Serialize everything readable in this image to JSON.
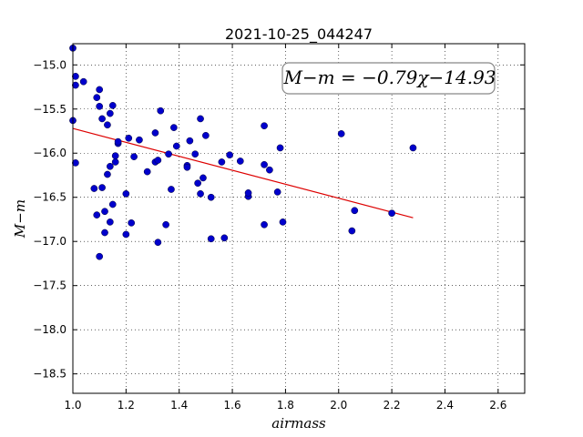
{
  "chart_data": {
    "type": "scatter",
    "title": "2021-10-25_044247",
    "xlabel": "airmass",
    "ylabel": "M−m",
    "xlim": [
      1.0,
      2.7
    ],
    "ylim": [
      -18.72,
      -14.76
    ],
    "y_inverted": true,
    "grid": true,
    "xticks": [
      1.0,
      1.2,
      1.4,
      1.6,
      1.8,
      2.0,
      2.2,
      2.4,
      2.6
    ],
    "xtick_labels": [
      "1.0",
      "1.2",
      "1.4",
      "1.6",
      "1.8",
      "2.0",
      "2.2",
      "2.4",
      "2.6"
    ],
    "yticks": [
      -15.0,
      -15.5,
      -16.0,
      -16.5,
      -17.0,
      -17.5,
      -18.0,
      -18.5
    ],
    "ytick_labels": [
      "−15.0",
      "−15.5",
      "−16.0",
      "−16.5",
      "−17.0",
      "−17.5",
      "−18.0",
      "−18.5"
    ],
    "annotation": "M−m = −0.79χ−14.93",
    "point_color": "#0000cc",
    "fit_color": "#dd0000",
    "fit_line": {
      "slope": -0.79,
      "intercept": -14.93,
      "x_range": [
        1.0,
        2.28
      ]
    },
    "points": [
      [
        1.0,
        -15.63
      ],
      [
        1.0,
        -14.81
      ],
      [
        1.01,
        -15.13
      ],
      [
        1.01,
        -15.23
      ],
      [
        1.01,
        -16.11
      ],
      [
        1.04,
        -15.19
      ],
      [
        1.08,
        -16.4
      ],
      [
        1.09,
        -15.37
      ],
      [
        1.09,
        -16.7
      ],
      [
        1.1,
        -15.28
      ],
      [
        1.1,
        -15.47
      ],
      [
        1.1,
        -17.17
      ],
      [
        1.11,
        -16.39
      ],
      [
        1.11,
        -15.61
      ],
      [
        1.12,
        -16.66
      ],
      [
        1.12,
        -16.9
      ],
      [
        1.13,
        -15.68
      ],
      [
        1.13,
        -16.24
      ],
      [
        1.14,
        -15.55
      ],
      [
        1.14,
        -16.78
      ],
      [
        1.14,
        -16.15
      ],
      [
        1.15,
        -15.46
      ],
      [
        1.15,
        -16.58
      ],
      [
        1.16,
        -16.1
      ],
      [
        1.16,
        -16.03
      ],
      [
        1.17,
        -15.89
      ],
      [
        1.17,
        -15.87
      ],
      [
        1.2,
        -16.92
      ],
      [
        1.2,
        -16.46
      ],
      [
        1.21,
        -15.83
      ],
      [
        1.22,
        -16.79
      ],
      [
        1.23,
        -16.04
      ],
      [
        1.25,
        -15.85
      ],
      [
        1.28,
        -16.21
      ],
      [
        1.31,
        -15.77
      ],
      [
        1.31,
        -16.1
      ],
      [
        1.32,
        -17.01
      ],
      [
        1.32,
        -16.08
      ],
      [
        1.33,
        -15.52
      ],
      [
        1.35,
        -16.81
      ],
      [
        1.36,
        -16.01
      ],
      [
        1.37,
        -16.41
      ],
      [
        1.38,
        -15.71
      ],
      [
        1.39,
        -15.92
      ],
      [
        1.43,
        -16.14
      ],
      [
        1.43,
        -16.16
      ],
      [
        1.44,
        -15.86
      ],
      [
        1.46,
        -16.01
      ],
      [
        1.47,
        -16.34
      ],
      [
        1.48,
        -16.46
      ],
      [
        1.48,
        -15.61
      ],
      [
        1.49,
        -16.28
      ],
      [
        1.5,
        -15.8
      ],
      [
        1.52,
        -16.97
      ],
      [
        1.52,
        -16.5
      ],
      [
        1.56,
        -16.1
      ],
      [
        1.57,
        -16.96
      ],
      [
        1.59,
        -16.02
      ],
      [
        1.63,
        -16.09
      ],
      [
        1.66,
        -16.49
      ],
      [
        1.66,
        -16.45
      ],
      [
        1.72,
        -15.69
      ],
      [
        1.72,
        -16.13
      ],
      [
        1.72,
        -16.81
      ],
      [
        1.74,
        -16.19
      ],
      [
        1.77,
        -16.44
      ],
      [
        1.78,
        -15.94
      ],
      [
        1.79,
        -16.78
      ],
      [
        2.01,
        -15.78
      ],
      [
        2.05,
        -16.88
      ],
      [
        2.06,
        -16.65
      ],
      [
        2.2,
        -16.68
      ],
      [
        2.28,
        -15.94
      ]
    ]
  }
}
